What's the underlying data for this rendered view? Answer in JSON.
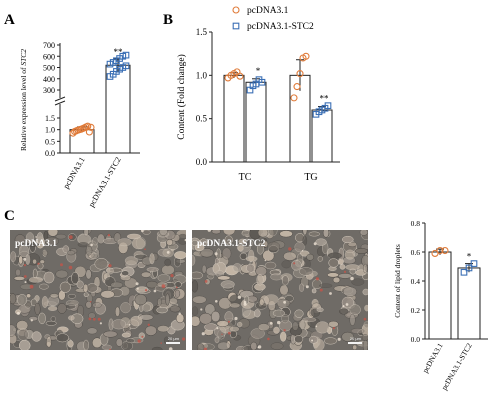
{
  "panels": {
    "a": "A",
    "b": "B",
    "c": "C"
  },
  "colors": {
    "orange": "#e07b39",
    "blue": "#3a6fb5"
  },
  "chart_data": [
    {
      "id": "A",
      "type": "bar",
      "ylabel_prefix": "Relative expression level of ",
      "ylabel_gene": "STC2",
      "categories": [
        "pcDNA3.1",
        "pcDNA3.1-STC2"
      ],
      "axis_break": true,
      "lower_ylim": [
        0.0,
        1.5
      ],
      "lower_ticks": [
        "0.0",
        "0.5",
        "1.0",
        "1.5"
      ],
      "upper_ylim": [
        300,
        700
      ],
      "upper_ticks": [
        "300",
        "400",
        "500",
        "600",
        "700"
      ],
      "values": [
        1.0,
        520
      ],
      "errors": [
        0.12,
        55
      ],
      "points": [
        [
          0.85,
          0.92,
          0.95,
          0.98,
          1.0,
          1.02,
          1.05,
          1.08,
          1.12,
          1.15,
          0.9,
          1.1
        ],
        [
          420,
          440,
          465,
          485,
          500,
          515,
          530,
          545,
          560,
          580,
          600,
          610
        ]
      ],
      "significance": [
        "",
        "**"
      ]
    },
    {
      "id": "B",
      "type": "bar",
      "ylabel": "Content (Fold change)",
      "categories": [
        "TC",
        "TG"
      ],
      "ylim": [
        0.0,
        1.5
      ],
      "yticks": [
        "0.0",
        "0.5",
        "1.0",
        "1.5"
      ],
      "legend": [
        "pcDNA3.1",
        "pcDNA3.1-STC2"
      ],
      "series": [
        {
          "name": "pcDNA3.1",
          "values": [
            1.0,
            1.0
          ],
          "errors": [
            0.03,
            0.18
          ],
          "points": [
            [
              0.97,
              1.0,
              1.02,
              1.04,
              0.99
            ],
            [
              0.74,
              0.87,
              1.02,
              1.2,
              1.22
            ]
          ]
        },
        {
          "name": "pcDNA3.1-STC2",
          "values": [
            0.92,
            0.6
          ],
          "errors": [
            0.04,
            0.04
          ],
          "points": [
            [
              0.83,
              0.88,
              0.9,
              0.95,
              0.92
            ],
            [
              0.55,
              0.58,
              0.6,
              0.62,
              0.65
            ]
          ]
        }
      ],
      "significance": [
        "*",
        "**"
      ]
    },
    {
      "id": "C",
      "type": "bar",
      "ylabel": "Content of lipid droplets",
      "categories": [
        "pcDNA3.1",
        "pcDNA3.1-STC2"
      ],
      "ylim": [
        0.0,
        0.8
      ],
      "yticks": [
        "0.0",
        "0.2",
        "0.4",
        "0.6",
        "0.8"
      ],
      "values": [
        0.6,
        0.49
      ],
      "errors": [
        0.02,
        0.03
      ],
      "points": [
        [
          0.59,
          0.61,
          0.61
        ],
        [
          0.46,
          0.49,
          0.52
        ]
      ],
      "significance": [
        "",
        "*"
      ]
    }
  ],
  "images": {
    "left_label": "pcDNA3.1",
    "right_label": "pcDNA3.1-STC2",
    "scale_text": "20 μm"
  }
}
